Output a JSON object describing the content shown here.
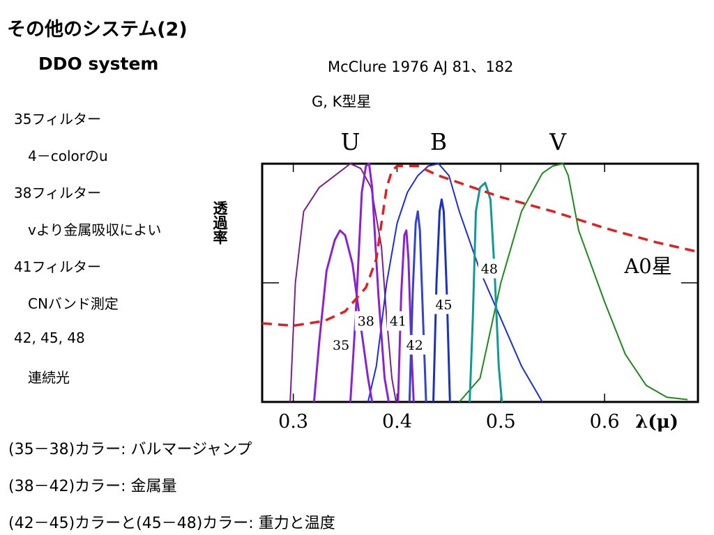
{
  "title": "その他のシステム(2)",
  "subtitle": "DDO system",
  "citation": "McClure 1976 AJ 81、182",
  "star_type": "G, K型星",
  "left_notes": [
    {
      "text": "35フィルター",
      "indent": false
    },
    {
      "text": "4－colorのu",
      "indent": true
    },
    {
      "text": "38フィルター",
      "indent": false
    },
    {
      "text": "vより金属吸収によい",
      "indent": true
    },
    {
      "text": "41フィルター",
      "indent": false
    },
    {
      "text": "CNバンド測定",
      "indent": true
    },
    {
      "text": "42, 45, 48",
      "indent": false
    },
    {
      "text": "連続光",
      "indent": true
    }
  ],
  "bottom_notes": [
    "(35－38)カラー: バルマージャンプ",
    "(38－42)カラー: 金属量",
    "(42－45)カラーと(45－48)カラー: 重力と温度"
  ],
  "chart_data": {
    "type": "line",
    "ylabel": "透過率",
    "xlabel": "λ(μ)",
    "xlim": [
      0.27,
      0.69
    ],
    "ylim": [
      0,
      1
    ],
    "x_ticks": [
      0.3,
      0.4,
      0.5,
      0.6
    ],
    "x_tick_labels": [
      "0.3",
      "0.4",
      "0.5",
      "0.6"
    ],
    "band_labels": [
      {
        "text": "U",
        "x": 0.355
      },
      {
        "text": "B",
        "x": 0.44
      },
      {
        "text": "V",
        "x": 0.555
      }
    ],
    "series": [
      {
        "name": "U",
        "color": "#7a1f8a",
        "width": 2,
        "points": [
          [
            0.297,
            0
          ],
          [
            0.302,
            0.5
          ],
          [
            0.31,
            0.8
          ],
          [
            0.325,
            0.9
          ],
          [
            0.34,
            0.95
          ],
          [
            0.355,
            1.0
          ],
          [
            0.365,
            0.98
          ],
          [
            0.375,
            0.9
          ],
          [
            0.385,
            0.65
          ],
          [
            0.39,
            0.35
          ],
          [
            0.395,
            0.1
          ],
          [
            0.399,
            0
          ]
        ]
      },
      {
        "name": "B",
        "color": "#1a2fd0",
        "width": 2,
        "points": [
          [
            0.372,
            0
          ],
          [
            0.38,
            0.15
          ],
          [
            0.39,
            0.5
          ],
          [
            0.4,
            0.75
          ],
          [
            0.41,
            0.88
          ],
          [
            0.42,
            0.95
          ],
          [
            0.43,
            0.99
          ],
          [
            0.44,
            1.0
          ],
          [
            0.45,
            0.95
          ],
          [
            0.46,
            0.8
          ],
          [
            0.48,
            0.55
          ],
          [
            0.5,
            0.35
          ],
          [
            0.52,
            0.15
          ],
          [
            0.54,
            0.0
          ]
        ]
      },
      {
        "name": "V",
        "color": "#1a8a1a",
        "width": 2,
        "points": [
          [
            0.46,
            0
          ],
          [
            0.48,
            0.1
          ],
          [
            0.5,
            0.5
          ],
          [
            0.52,
            0.8
          ],
          [
            0.54,
            0.96
          ],
          [
            0.55,
            0.99
          ],
          [
            0.56,
            1.0
          ],
          [
            0.565,
            0.95
          ],
          [
            0.575,
            0.72
          ],
          [
            0.6,
            0.42
          ],
          [
            0.62,
            0.2
          ],
          [
            0.64,
            0.07
          ],
          [
            0.66,
            0.02
          ],
          [
            0.68,
            0.01
          ]
        ]
      },
      {
        "name": "35",
        "color": "#8a22d0",
        "width": 3,
        "points": [
          [
            0.32,
            0
          ],
          [
            0.325,
            0.25
          ],
          [
            0.332,
            0.55
          ],
          [
            0.34,
            0.68
          ],
          [
            0.345,
            0.72
          ],
          [
            0.35,
            0.7
          ],
          [
            0.357,
            0.58
          ],
          [
            0.365,
            0.32
          ],
          [
            0.372,
            0.1
          ],
          [
            0.376,
            0
          ]
        ]
      },
      {
        "name": "38",
        "color": "#8a22d0",
        "width": 3,
        "points": [
          [
            0.355,
            0
          ],
          [
            0.36,
            0.35
          ],
          [
            0.366,
            0.88
          ],
          [
            0.37,
            0.99
          ],
          [
            0.373,
            1.0
          ],
          [
            0.376,
            0.9
          ],
          [
            0.382,
            0.45
          ],
          [
            0.388,
            0.1
          ],
          [
            0.392,
            0
          ]
        ]
      },
      {
        "name": "41",
        "color": "#8a22d0",
        "width": 3,
        "points": [
          [
            0.401,
            0
          ],
          [
            0.404,
            0.45
          ],
          [
            0.407,
            0.7
          ],
          [
            0.409,
            0.72
          ],
          [
            0.411,
            0.6
          ],
          [
            0.414,
            0.2
          ],
          [
            0.416,
            0
          ]
        ]
      },
      {
        "name": "42",
        "color": "#3344c8",
        "width": 3,
        "points": [
          [
            0.412,
            0
          ],
          [
            0.415,
            0.45
          ],
          [
            0.418,
            0.75
          ],
          [
            0.42,
            0.8
          ],
          [
            0.422,
            0.72
          ],
          [
            0.425,
            0.35
          ],
          [
            0.428,
            0
          ]
        ]
      },
      {
        "name": "45",
        "color": "#1a33b8",
        "width": 3,
        "points": [
          [
            0.435,
            0
          ],
          [
            0.438,
            0.5
          ],
          [
            0.441,
            0.8
          ],
          [
            0.443,
            0.85
          ],
          [
            0.445,
            0.8
          ],
          [
            0.448,
            0.45
          ],
          [
            0.451,
            0
          ]
        ]
      },
      {
        "name": "48",
        "color": "#119999",
        "width": 3,
        "points": [
          [
            0.47,
            0
          ],
          [
            0.473,
            0.35
          ],
          [
            0.476,
            0.8
          ],
          [
            0.48,
            0.9
          ],
          [
            0.485,
            0.92
          ],
          [
            0.49,
            0.85
          ],
          [
            0.494,
            0.55
          ],
          [
            0.498,
            0.15
          ],
          [
            0.501,
            0
          ]
        ]
      },
      {
        "name": "A0星",
        "color": "#e02020",
        "width": 3.5,
        "dash": "14,9",
        "points": [
          [
            0.27,
            0.33
          ],
          [
            0.3,
            0.32
          ],
          [
            0.33,
            0.34
          ],
          [
            0.35,
            0.38
          ],
          [
            0.37,
            0.48
          ],
          [
            0.38,
            0.6
          ],
          [
            0.385,
            0.75
          ],
          [
            0.39,
            0.9
          ],
          [
            0.395,
            0.97
          ],
          [
            0.4,
            0.99
          ],
          [
            0.42,
            0.99
          ],
          [
            0.44,
            0.95
          ],
          [
            0.5,
            0.86
          ],
          [
            0.55,
            0.8
          ],
          [
            0.6,
            0.73
          ],
          [
            0.65,
            0.67
          ],
          [
            0.69,
            0.63
          ]
        ]
      }
    ],
    "filter_labels": [
      {
        "text": "35",
        "x": 0.346,
        "y": 0.24
      },
      {
        "text": "38",
        "x": 0.37,
        "y": 0.34
      },
      {
        "text": "41",
        "x": 0.401,
        "y": 0.34
      },
      {
        "text": "42",
        "x": 0.417,
        "y": 0.24
      },
      {
        "text": "45",
        "x": 0.445,
        "y": 0.41
      },
      {
        "text": "48",
        "x": 0.489,
        "y": 0.56
      }
    ],
    "curve_label": {
      "text": "A0星",
      "x": 0.642,
      "y": 0.57
    }
  }
}
